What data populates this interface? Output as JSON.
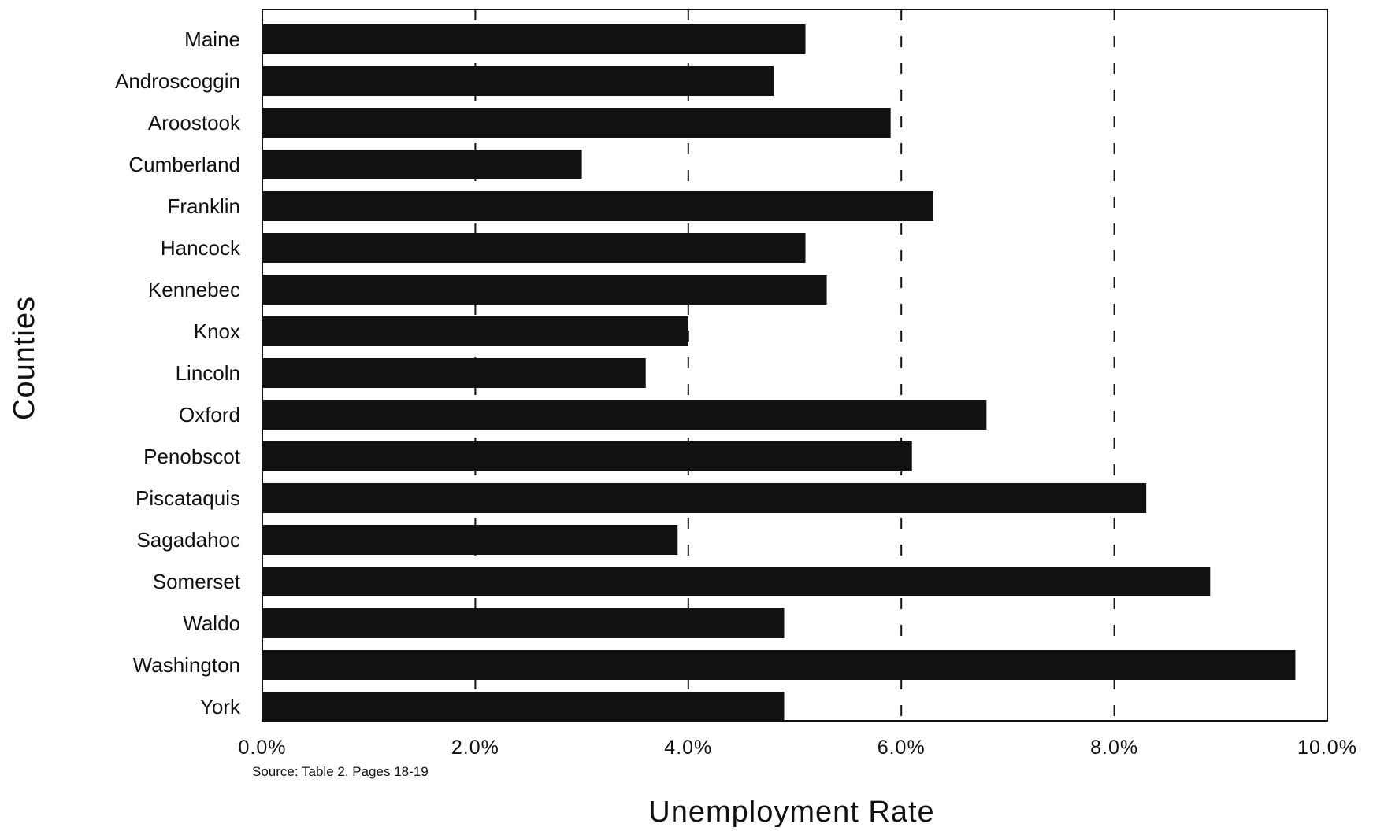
{
  "chart_data": {
    "type": "bar",
    "orientation": "horizontal",
    "categories": [
      "Maine",
      "Androscoggin",
      "Aroostook",
      "Cumberland",
      "Franklin",
      "Hancock",
      "Kennebec",
      "Knox",
      "Lincoln",
      "Oxford",
      "Penobscot",
      "Piscataquis",
      "Sagadahoc",
      "Somerset",
      "Waldo",
      "Washington",
      "York"
    ],
    "values": [
      5.1,
      4.8,
      5.9,
      3.0,
      6.3,
      5.1,
      5.3,
      4.0,
      3.6,
      6.8,
      6.1,
      8.3,
      3.9,
      8.9,
      4.9,
      9.7,
      4.9
    ],
    "xlabel": "Unemployment Rate",
    "ylabel": "Counties",
    "xlim": [
      0,
      10
    ],
    "ticks": [
      0,
      2,
      4,
      6,
      8,
      10
    ],
    "tick_labels": [
      "0.0%",
      "2.0%",
      "4.0%",
      "6.0%",
      "8.0%",
      "10.0%"
    ],
    "grid": "vertical dashed",
    "source": "Source: Table 2, Pages 18-19",
    "colors": {
      "bar": "#111111",
      "gridline": "#111111",
      "frame": "#111111",
      "background": "#ffffff"
    }
  }
}
